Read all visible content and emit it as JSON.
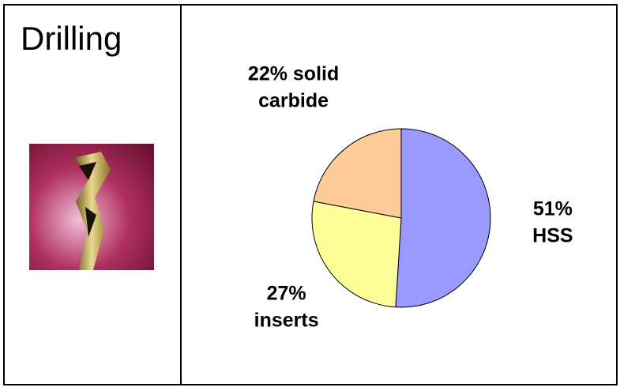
{
  "header": {
    "title": "Drilling"
  },
  "chart_data": {
    "type": "pie",
    "values": [
      51,
      27,
      22
    ],
    "value_labels": [
      "51% HSS",
      "27%\ninserts",
      "22% solid\ncarbide"
    ],
    "colors": [
      "#9999ff",
      "#ffff99",
      "#ffcc99"
    ]
  }
}
